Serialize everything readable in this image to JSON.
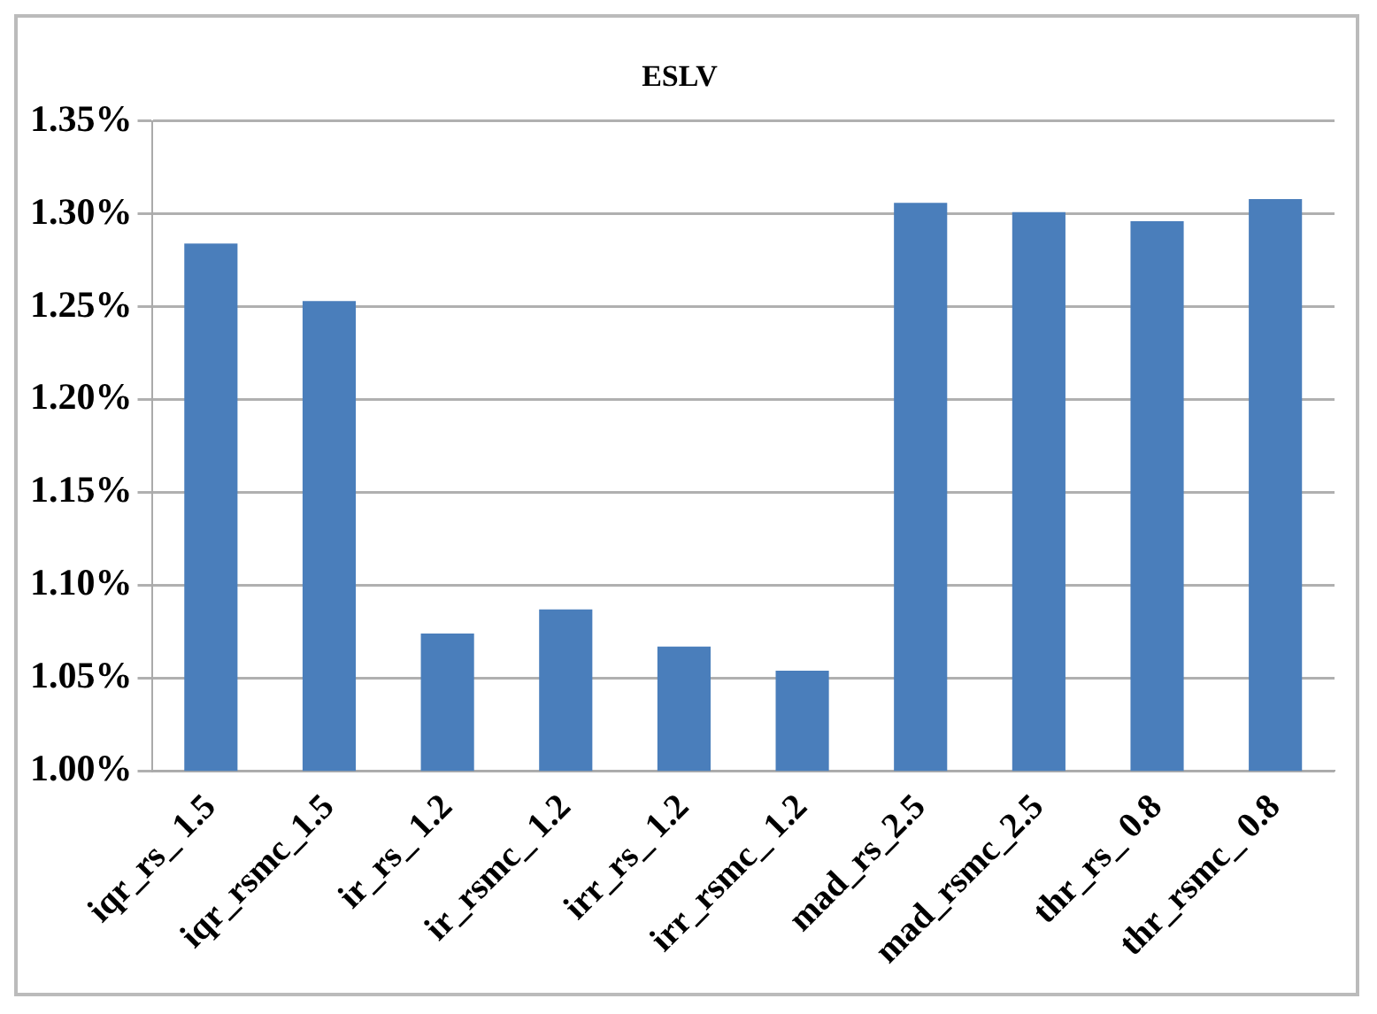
{
  "chart_data": {
    "type": "bar",
    "title": "ESLV",
    "categories": [
      "iqr_rs_ 1.5",
      "iqr_rsmc_1.5",
      "ir_rs_ 1.2",
      "ir_rsmc_ 1.2",
      "irr_rs_ 1.2",
      "irr_rsmc_ 1.2",
      "mad_rs_2.5",
      "mad_rsmc_2.5",
      "thr_rs_ 0.8",
      "thr_rsmc_ 0.8"
    ],
    "values": [
      1.284,
      1.253,
      1.074,
      1.087,
      1.067,
      1.054,
      1.306,
      1.301,
      1.296,
      1.308
    ],
    "color": "#4a7ebb",
    "ylim": [
      1.0,
      1.35
    ],
    "yticks": [
      {
        "value": 1.0,
        "label": "1.00%"
      },
      {
        "value": 1.05,
        "label": "1.05%"
      },
      {
        "value": 1.1,
        "label": "1.10%"
      },
      {
        "value": 1.15,
        "label": "1.15%"
      },
      {
        "value": 1.2,
        "label": "1.20%"
      },
      {
        "value": 1.25,
        "label": "1.25%"
      },
      {
        "value": 1.3,
        "label": "1.30%"
      },
      {
        "value": 1.35,
        "label": "1.35%"
      }
    ],
    "grid": "y",
    "legend": false
  }
}
